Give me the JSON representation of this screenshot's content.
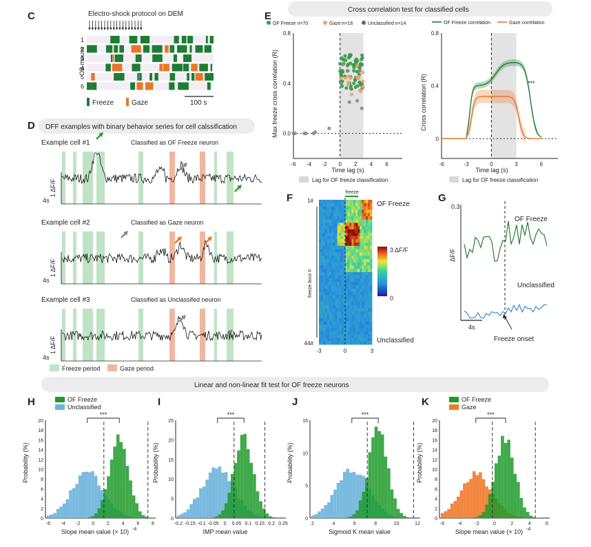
{
  "panel_labels": {
    "c": "C",
    "d": "D",
    "e": "E",
    "f": "F",
    "g": "G",
    "h": "H",
    "i": "I",
    "j": "J",
    "k": "K"
  },
  "panel_c": {
    "title": "Electro-shock protocol on DEM",
    "ylabel": "OB mouse",
    "rows": [
      "1",
      "2",
      "3",
      "4",
      "5",
      "6"
    ],
    "legend_freeze": "Freeze",
    "legend_gaze": "Gaze",
    "scalebar": "100 s",
    "colors": {
      "freeze": "#1e7d33",
      "gaze": "#e8762a"
    }
  },
  "panel_d": {
    "banner": "DFF examples with binary behavior series for cell calssification",
    "cells": [
      {
        "name": "Example cell #1",
        "class": "Classified as OF Freeze neuron"
      },
      {
        "name": "Example cell #2",
        "class": "Classified as Gaze neuron"
      },
      {
        "name": "Example cell #3",
        "class": "Classified as Unclassifed neuron"
      }
    ],
    "scale_y": "1 ΔF/F",
    "scale_x": "4s",
    "legend_freeze": "Freeze period",
    "legend_gaze": "Gaze period"
  },
  "panel_e": {
    "banner": "Cross correlation test for classified cells",
    "legend": [
      {
        "label": "OF Freeze n=70",
        "color": "#3a9a4a"
      },
      {
        "label": "Gaze n=16",
        "color": "#f0a070"
      },
      {
        "label": "Unclassified n=14",
        "color": "#666666"
      }
    ],
    "legend_right": [
      {
        "label": "OF Freeze correlation",
        "color": "#1e7d33"
      },
      {
        "label": "Gaze correlation",
        "color": "#e8762a"
      }
    ],
    "ylabel_left": "Max freeze cross correlation (R)",
    "ylabel_right": "Cross correlation (R)",
    "xlabel": "Time lag (s)",
    "shade_caption": "Lag for OF freeze classification",
    "sig": "***",
    "left_yticks": [
      "0.8",
      "0.4",
      "0.0"
    ],
    "left_xticks": [
      "-6",
      "-4",
      "-2",
      "0",
      "2",
      "4",
      "6"
    ],
    "right_yticks": [
      "0.8",
      "0.4",
      "0"
    ],
    "right_xticks": [
      "-6",
      "-3",
      "0",
      "3",
      "6"
    ]
  },
  "panel_f": {
    "top_label": "freeze",
    "top_right": "OF Freeze",
    "bottom_right": "Unclassified",
    "ylabel": "freeze bout #",
    "first": "1#",
    "last": "44#",
    "xticks": [
      "-3",
      "0",
      "3"
    ],
    "cbar_top": "3 ΔF/F",
    "cbar_bottom": "0"
  },
  "panel_g": {
    "ytick": "0.3",
    "ylabel": "ΔF/F",
    "trace1": "OF Freeze",
    "trace2": "Unclassified",
    "scale_x": "4s",
    "onset": "Freeze onset"
  },
  "bottom_banner": "Linear and non-linear fit test for OF freeze  neurons",
  "hist_panels": [
    {
      "legend": [
        "OF Freeze",
        "Unclassified"
      ],
      "colors": [
        "#1e9a2a",
        "#6bb2dc"
      ],
      "xlabel": "Slope mean value (× 10)",
      "xsup": "-4",
      "ylabel": "Probability (%)",
      "yticks": [
        "20",
        "18",
        "16",
        "14",
        "12",
        "10",
        "8",
        "6",
        "4",
        "2",
        "0"
      ],
      "xticks": [
        "-6",
        "-4",
        "-2",
        "0",
        "2",
        "4",
        "6",
        "8"
      ],
      "sig": "***"
    },
    {
      "legend": [],
      "colors": [
        "#1e9a2a",
        "#6bb2dc"
      ],
      "xlabel": "IMP mean value",
      "xsup": "",
      "ylabel": "Probability (%)",
      "yticks": [
        "25",
        "20",
        "15",
        "10",
        "5",
        "0"
      ],
      "xticks": [
        "-0.2",
        "-0.15",
        "-0.1",
        "-0.05",
        "0",
        "0.05",
        "0.1",
        "0.15",
        "0.2",
        "0.25"
      ],
      "sig": "***"
    },
    {
      "legend": [],
      "colors": [
        "#1e9a2a",
        "#6bb2dc"
      ],
      "xlabel": "Sigmoid K mean value",
      "xsup": "",
      "ylabel": "Probability (%)",
      "yticks": [
        "15",
        "10",
        "5",
        "0"
      ],
      "xticks": [
        "2",
        "4",
        "6",
        "8",
        "10",
        "12"
      ],
      "sig": "***"
    },
    {
      "legend": [
        "OF Freeze",
        "Gaze"
      ],
      "colors": [
        "#1e9a2a",
        "#f07a2a"
      ],
      "xlabel": "Slope mean value (× 10)",
      "xsup": "-4",
      "ylabel": "Probability (%)",
      "yticks": [
        "20",
        "18",
        "16",
        "14",
        "12",
        "10",
        "8",
        "6",
        "4",
        "2",
        "0"
      ],
      "xticks": [
        "-6",
        "-4",
        "-2",
        "0",
        "2",
        "4",
        "6"
      ],
      "sig": "***"
    }
  ]
}
